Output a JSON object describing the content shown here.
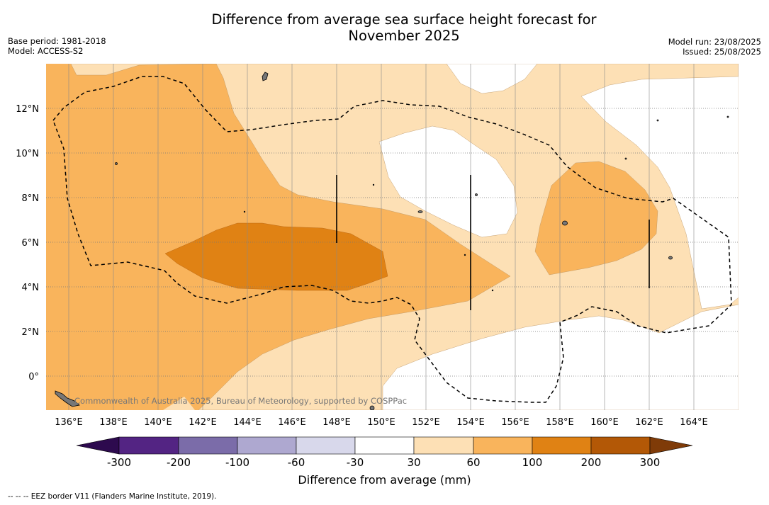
{
  "title_line1": "Difference from average sea surface height forecast for",
  "title_line2": "November 2025",
  "meta": {
    "base_period": "Base period: 1981-2018",
    "model": "Model: ACCESS-S2",
    "model_run": "Model run: 23/08/2025",
    "issued": "Issued: 25/08/2025"
  },
  "map": {
    "lon_ticks": [
      "136°E",
      "138°E",
      "140°E",
      "142°E",
      "144°E",
      "146°E",
      "148°E",
      "150°E",
      "152°E",
      "154°E",
      "156°E",
      "158°E",
      "160°E",
      "162°E",
      "164°E"
    ],
    "lat_ticks": [
      "12°N",
      "10°N",
      "8°N",
      "6°N",
      "4°N",
      "2°N",
      "0°"
    ],
    "copyright": "Commonwealth of Australia 2025, Bureau of Meteorology, supported by COSPPac"
  },
  "colorbar": {
    "labels": [
      "-300",
      "-200",
      "-100",
      "-60",
      "-30",
      "30",
      "60",
      "100",
      "200",
      "300"
    ],
    "colors": [
      "#2d0a4e",
      "#532483",
      "#7b6ca9",
      "#aea8d0",
      "#d8d8eb",
      "#ffffff",
      "#fde0b5",
      "#f9b45c",
      "#e08214",
      "#b35806",
      "#7f3b08"
    ],
    "title": "Difference from average (mm)"
  },
  "footnote": "--  --  -- EEZ border V11 (Flanders Marine Institute, 2019)."
}
